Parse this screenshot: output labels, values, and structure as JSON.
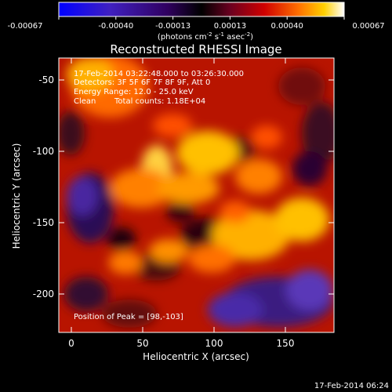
{
  "colorbar": {
    "ticks": [
      "-0.00067",
      "-0.00040",
      "-0.00013",
      "0.00013",
      "0.00040",
      "0.00067"
    ],
    "units_main": "(photons cm",
    "units_exp1": "-2",
    "units_mid": " s",
    "units_exp2": "-1",
    "units_end": " asec",
    "units_exp3": "-2",
    "units_close": ")"
  },
  "title": "Reconstructed RHESSI Image",
  "info": {
    "time_range": "17-Feb-2014 03:22:48.000 to 03:26:30.000",
    "detectors": "Detectors: 3F 5F 6F 7F 8F 9F, Att 0",
    "energy_range": "Energy Range: 12.0 - 25.0 keV",
    "method": "Clean",
    "total_counts": "Total counts: 1.18E+04",
    "peak_position": "Position of Peak = [98,-103]"
  },
  "axes": {
    "xlabel": "Heliocentric X (arcsec)",
    "ylabel": "Heliocentric Y (arcsec)",
    "xticks": [
      "0",
      "50",
      "100",
      "150"
    ],
    "yticks": [
      "-50",
      "-100",
      "-150",
      "-200"
    ]
  },
  "timestamp": "17-Feb-2014 06:24",
  "colors": {
    "background": "#000000",
    "negative_end": "#0000ff",
    "mid": "#000000",
    "positive_end": "#ffffff"
  }
}
